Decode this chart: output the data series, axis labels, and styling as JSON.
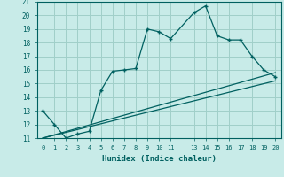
{
  "xlabel": "Humidex (Indice chaleur)",
  "bg_color": "#c8ebe8",
  "grid_color": "#a0cfc9",
  "line_color": "#006060",
  "xlim": [
    -0.5,
    20.5
  ],
  "ylim": [
    11,
    21
  ],
  "xticks": [
    0,
    1,
    2,
    3,
    4,
    5,
    6,
    7,
    8,
    9,
    10,
    11,
    13,
    14,
    15,
    16,
    17,
    18,
    19,
    20
  ],
  "yticks": [
    11,
    12,
    13,
    14,
    15,
    16,
    17,
    18,
    19,
    20,
    21
  ],
  "main_x": [
    0,
    1,
    2,
    3,
    4,
    5,
    6,
    7,
    8,
    9,
    10,
    11,
    13,
    14,
    15,
    16,
    17,
    18,
    19,
    20
  ],
  "main_y": [
    13,
    12,
    11,
    11.3,
    11.5,
    14.5,
    15.9,
    16.0,
    16.1,
    19.0,
    18.8,
    18.3,
    20.2,
    20.7,
    18.5,
    18.2,
    18.2,
    17.0,
    16.0,
    15.5
  ],
  "ref_line1_x": [
    0,
    20
  ],
  "ref_line1_y": [
    11.0,
    15.8
  ],
  "ref_line2_x": [
    0,
    20
  ],
  "ref_line2_y": [
    11.0,
    15.2
  ]
}
